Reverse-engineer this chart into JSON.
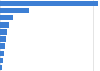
{
  "values": [
    2100,
    630,
    280,
    200,
    155,
    120,
    100,
    85,
    70,
    40
  ],
  "bar_color": "#3d7fd4",
  "background_color": "#ffffff",
  "grid_color": "#d0d0d0",
  "figsize": [
    1.0,
    0.71
  ],
  "dpi": 100
}
